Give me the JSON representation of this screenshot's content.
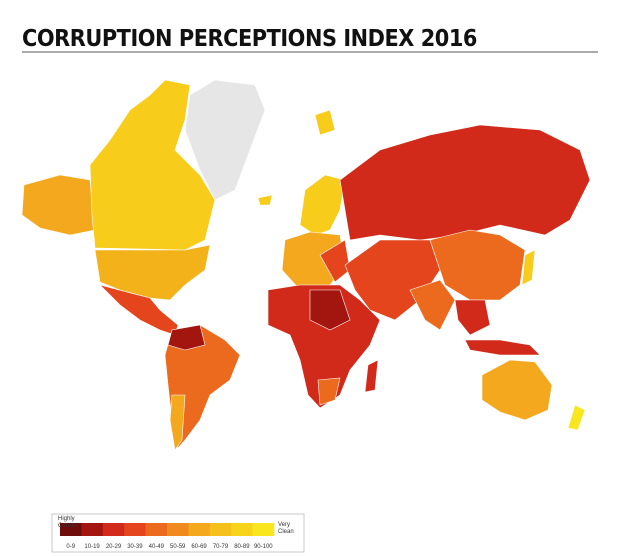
{
  "title": "CORRUPTION PERCEPTIONS INDEX 2016",
  "legend": {
    "low": [
      "Highly",
      "Corrupt"
    ],
    "high": [
      "Very",
      "Clean"
    ],
    "bins": [
      {
        "label": "0-9",
        "color": "#6e0b0b"
      },
      {
        "label": "10-19",
        "color": "#a3150f"
      },
      {
        "label": "20-29",
        "color": "#d12a1a"
      },
      {
        "label": "30-39",
        "color": "#e4451c"
      },
      {
        "label": "40-49",
        "color": "#ec6a1d"
      },
      {
        "label": "50-59",
        "color": "#f08a1f"
      },
      {
        "label": "60-69",
        "color": "#f3a81e"
      },
      {
        "label": "70-79",
        "color": "#f5c01c"
      },
      {
        "label": "80-89",
        "color": "#f7d41a"
      },
      {
        "label": "90-100",
        "color": "#f9e61f"
      }
    ]
  }
}
